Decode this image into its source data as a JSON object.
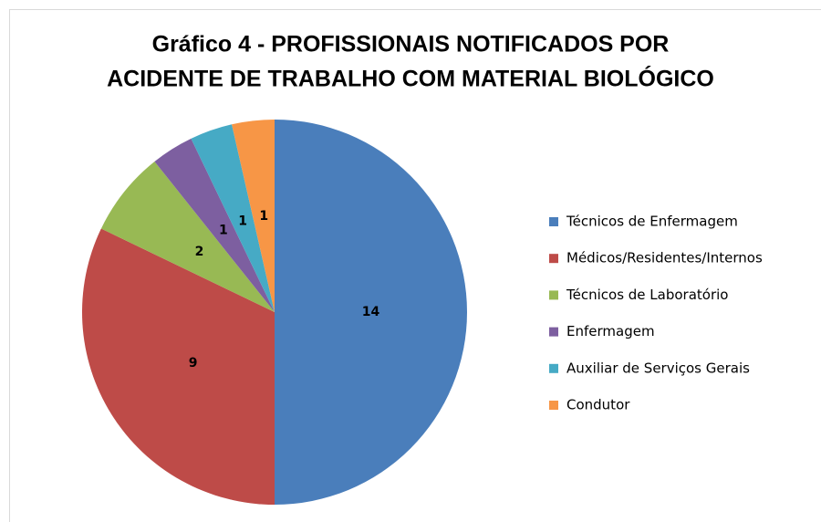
{
  "chart_data": {
    "type": "pie",
    "title": [
      "Gráfico 4 - PROFISSIONAIS NOTIFICADOS POR",
      "ACIDENTE DE TRABALHO COM MATERIAL BIOLÓGICO"
    ],
    "categories": [
      "Técnicos de Enfermagem",
      "Médicos/Residentes/Internos",
      "Técnicos de Laboratório",
      "Enfermagem",
      "Auxiliar de Serviços Gerais",
      "Condutor"
    ],
    "values": [
      14,
      9,
      2,
      1,
      1,
      1
    ],
    "colors": [
      "#4a7ebb",
      "#be4b48",
      "#98b954",
      "#7d5fa0",
      "#46aac5",
      "#f79646"
    ],
    "legend": "right"
  }
}
